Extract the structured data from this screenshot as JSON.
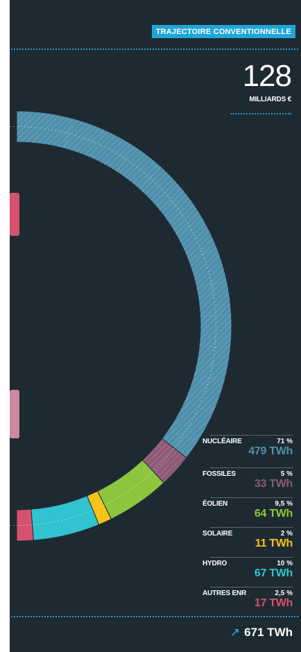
{
  "tag": "TRAJECTOIRE CONVENTIONNELLE",
  "cost": {
    "value": "128",
    "unit": "MILLIARDS €"
  },
  "total": {
    "arrow": "↗",
    "label": "671 TWh"
  },
  "chart_data": {
    "type": "pie",
    "subtype": "donut",
    "total_twh": 671,
    "series": [
      {
        "name": "NUCLÉAIRE",
        "percent": 71,
        "percent_label": "71 %",
        "value": 479,
        "value_label": "479 TWh",
        "color": "#4f8fac"
      },
      {
        "name": "FOSSILES",
        "percent": 5,
        "percent_label": "5 %",
        "value": 33,
        "value_label": "33 TWh",
        "color": "#8e5a77"
      },
      {
        "name": "ÉOLIEN",
        "percent": 9.5,
        "percent_label": "9,5 %",
        "value": 64,
        "value_label": "64 TWh",
        "color": "#8cc63e"
      },
      {
        "name": "SOLAIRE",
        "percent": 2,
        "percent_label": "2 %",
        "value": 11,
        "value_label": "11 TWh",
        "color": "#f7c21a"
      },
      {
        "name": "HYDRO",
        "percent": 10,
        "percent_label": "10 %",
        "value": 67,
        "value_label": "67 TWh",
        "color": "#31c3cf"
      },
      {
        "name": "AUTRES ENR",
        "percent": 2.5,
        "percent_label": "2,5 %",
        "value": 17,
        "value_label": "17 TWh",
        "color": "#d5526e"
      }
    ],
    "left_partial_blocks": [
      {
        "color": "#d5526e"
      },
      {
        "color": "#c98a9f"
      }
    ]
  }
}
